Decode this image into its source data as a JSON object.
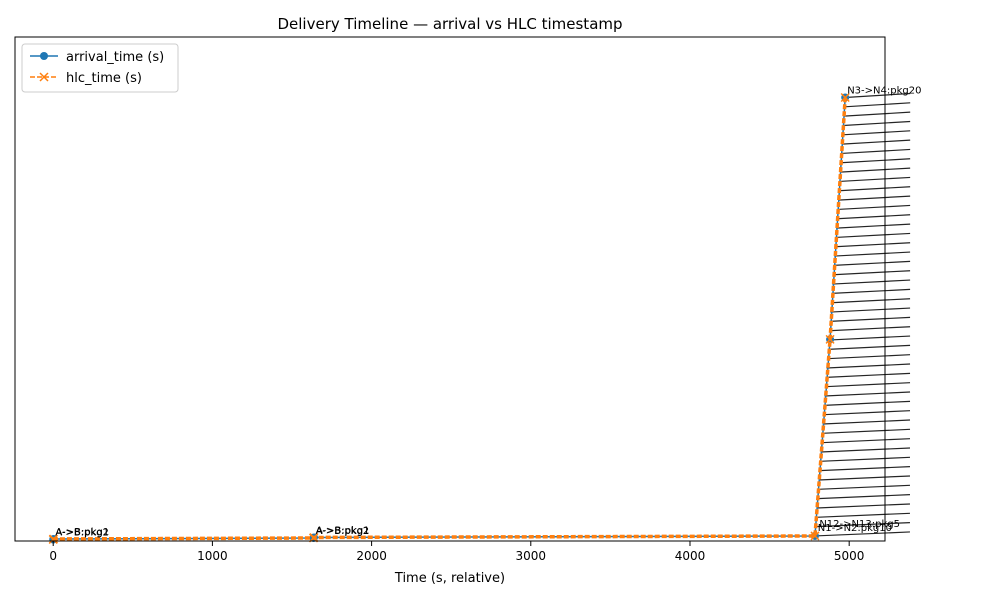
{
  "chart_data": {
    "type": "line",
    "title": "Delivery Timeline — arrival vs HLC timestamp",
    "xlabel": "Time (s, relative)",
    "ylabel": "",
    "xlim": [
      -240,
      5225
    ],
    "ylim": [
      0,
      1
    ],
    "xticks": [
      "0",
      "1000",
      "2000",
      "3000",
      "4000",
      "5000"
    ],
    "grid": false,
    "legend_position": "top-left",
    "series": [
      {
        "name": "arrival_time (s)",
        "color": "#1f77b4",
        "marker": "circle",
        "linestyle": "solid",
        "points": [
          {
            "x": 0,
            "y": 0.003
          },
          {
            "x": 2,
            "y": 0.004
          },
          {
            "x": 1635,
            "y": 0.006
          },
          {
            "x": 1638,
            "y": 0.007
          },
          {
            "x": 4785,
            "y": 0.01
          },
          {
            "x": 4880,
            "y": 0.4
          },
          {
            "x": 4975,
            "y": 0.88
          }
        ]
      },
      {
        "name": "hlc_time (s)",
        "color": "#ff7f0e",
        "marker": "x",
        "linestyle": "dashed",
        "points": [
          {
            "x": 0,
            "y": 0.003
          },
          {
            "x": 2,
            "y": 0.004
          },
          {
            "x": 1635,
            "y": 0.006
          },
          {
            "x": 1638,
            "y": 0.007
          },
          {
            "x": 4785,
            "y": 0.01
          },
          {
            "x": 4880,
            "y": 0.4
          },
          {
            "x": 4975,
            "y": 0.88
          }
        ]
      }
    ],
    "annotations": [
      {
        "text": "A->B:pkg2",
        "x": 0,
        "y": 0.003
      },
      {
        "text": "A->B:pkg1",
        "x": 2,
        "y": 0.004
      },
      {
        "text": "A->B:pkg2",
        "x": 1635,
        "y": 0.006
      },
      {
        "text": "A->B:pkg1",
        "x": 1638,
        "y": 0.007
      },
      {
        "text": "N1->N2:pkg10",
        "x": 4790,
        "y": 0.012
      },
      {
        "text": "N3->N4:pkg20",
        "x": 4975,
        "y": 0.88
      },
      {
        "text": "N12->N13:pkg5",
        "x": 4800,
        "y": 0.02
      }
    ]
  }
}
